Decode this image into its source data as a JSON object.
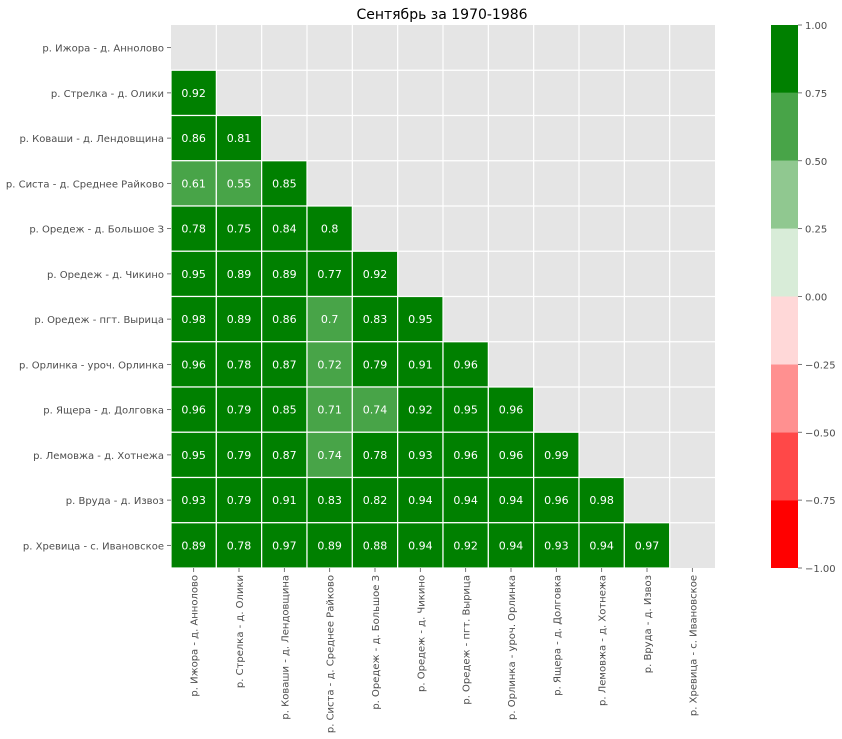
{
  "chart_data": {
    "type": "heatmap",
    "title": "Сентябрь за 1970-1986",
    "labels": [
      "р. Ижора - д. Аннолово",
      "р. Стрелка - д. Олики",
      "р. Коваши - д. Лендовщина",
      "р. Систа - д. Среднее Райково",
      "р. Оредеж - д. Большое З",
      "р. Оредеж - д. Чикино",
      "р. Оредеж - пгт. Вырица",
      "р. Орлинка - уроч. Орлинка",
      "р. Ящера - д. Долговка",
      "р. Лемовжа - д. Хотнежа",
      "р. Вруда - д. Извоз",
      "р. Хревица - с. Ивановское"
    ],
    "values": [
      [],
      [
        0.92
      ],
      [
        0.86,
        0.81
      ],
      [
        0.61,
        0.55,
        0.85
      ],
      [
        0.78,
        0.75,
        0.84,
        0.8
      ],
      [
        0.95,
        0.89,
        0.89,
        0.77,
        0.92
      ],
      [
        0.98,
        0.89,
        0.86,
        0.7,
        0.83,
        0.95
      ],
      [
        0.96,
        0.78,
        0.87,
        0.72,
        0.79,
        0.91,
        0.96
      ],
      [
        0.96,
        0.79,
        0.85,
        0.71,
        0.74,
        0.92,
        0.95,
        0.96
      ],
      [
        0.95,
        0.79,
        0.87,
        0.74,
        0.78,
        0.93,
        0.96,
        0.96,
        0.99
      ],
      [
        0.93,
        0.79,
        0.91,
        0.83,
        0.82,
        0.94,
        0.94,
        0.94,
        0.96,
        0.98
      ],
      [
        0.89,
        0.78,
        0.97,
        0.89,
        0.88,
        0.94,
        0.92,
        0.94,
        0.93,
        0.94,
        0.97
      ]
    ],
    "colorbar": {
      "boundaries": [
        -1.0,
        -0.75,
        -0.5,
        -0.25,
        0.0,
        0.25,
        0.5,
        0.75,
        1.0
      ],
      "colors": [
        "#ff0000",
        "#ff4848",
        "#ff9090",
        "#ffd8d8",
        "#d8ecd8",
        "#90c890",
        "#48a448",
        "#008000"
      ],
      "tick_labels": [
        "−1.00",
        "−0.75",
        "−0.50",
        "−0.25",
        "0.00",
        "0.25",
        "0.50",
        "0.75",
        "1.00"
      ]
    },
    "masked_color": "#e5e5e5",
    "text_color": "#ffffff"
  }
}
